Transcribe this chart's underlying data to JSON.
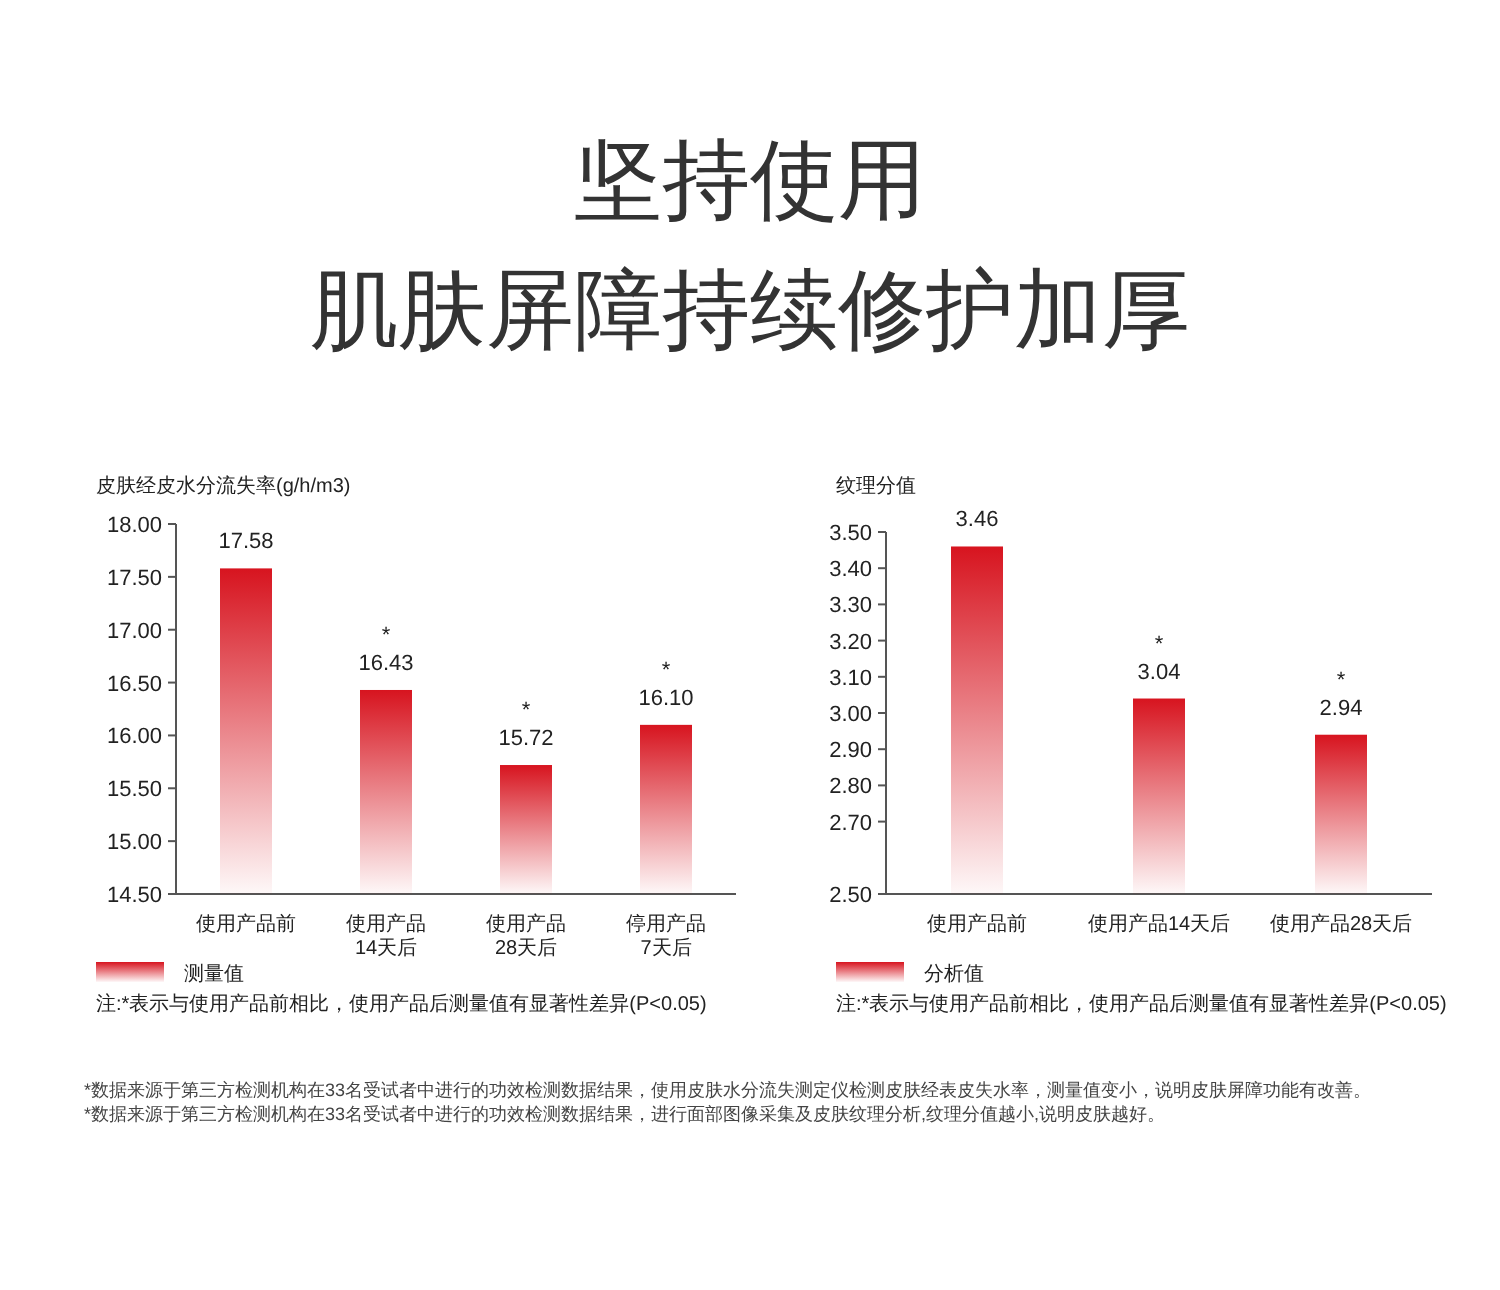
{
  "chart_data": [
    {
      "type": "bar",
      "title": "坚持使用",
      "subtitle": "肌肤屏障持续修护加厚",
      "ylabel": "皮肤经皮水分流失率(g/h/m3)",
      "categories": [
        "使用产品前",
        "使用产品\n14天后",
        "使用产品\n28天后",
        "停用产品\n7天后"
      ],
      "series": [
        {
          "name": "测量值",
          "color": "#d7141f",
          "values": [
            17.58,
            16.43,
            15.72,
            16.1
          ]
        }
      ],
      "value_labels": [
        "17.58",
        "16.43",
        "15.72",
        "16.10"
      ],
      "ylim": [
        14.5,
        18
      ],
      "yticks": [
        {
          "value": 14.5,
          "label": "14.50"
        },
        {
          "value": 15,
          "label": "15.00"
        },
        {
          "value": 15.5,
          "label": "15.50"
        },
        {
          "value": 16,
          "label": "16.00"
        },
        {
          "value": 16.5,
          "label": "16.50"
        },
        {
          "value": 17,
          "label": "17.00"
        },
        {
          "value": 17.5,
          "label": "17.50"
        },
        {
          "value": 18,
          "label": "18.00"
        }
      ],
      "legend": "bottom left",
      "grid": false,
      "annotations": [
        {
          "text": "*",
          "x": "使用产品\n14天后",
          "y": 16.43
        },
        {
          "text": "*",
          "x": "使用产品\n28天后",
          "y": 15.72
        },
        {
          "text": "*",
          "x": "停用产品\n7天后",
          "y": 16.1
        },
        "注:*表示与使用产品前相比，使用产品后测量值有显著性差异(P<0.05)"
      ]
    },
    {
      "type": "bar",
      "ylabel": "纹理分值",
      "categories": [
        "使用产品前",
        "使用产品14天后",
        "使用产品28天后"
      ],
      "series": [
        {
          "name": "分析值",
          "color": "#d7141f",
          "values": [
            3.46,
            3.04,
            2.94
          ]
        }
      ],
      "data_labels": true,
      "ylim": [
        2.5,
        3.5
      ],
      "yticks": [
        {
          "value": 2.5,
          "label": "2.50"
        },
        {
          "value": 2.7,
          "label": "2.70"
        },
        {
          "value": 2.8,
          "label": "2.80"
        },
        {
          "value": 2.9,
          "label": "2.90"
        },
        {
          "value": 3.0,
          "label": "3.00"
        },
        {
          "value": 3.1,
          "label": "3.10"
        },
        {
          "value": 3.2,
          "label": "3.20"
        },
        {
          "value": 3.3,
          "label": "3.30"
        },
        {
          "value": 3.4,
          "label": "3.40"
        },
        {
          "value": 3.5,
          "label": "3.50"
        }
      ],
      "legend": "bottom left",
      "grid": false,
      "annotations": [
        {
          "text": "*",
          "x": "使用产品14天后",
          "y": 3.04
        },
        {
          "text": "*",
          "x": "使用产品28天后",
          "y": 2.94
        },
        "注:*表示与使用产品前相比，使用产品后测量值有显著性差异(P<0.05)",
        "*数据来源于第三方检测机构在33名受试者中进行的功效检测数据结果，使用皮肤水分流失测定仪检测皮肤经表皮失水率，测量值变小，说明皮肤屏障功能有改善。",
        "*数据来源于第三方检测机构在33名受试者中进行的功效检测数据结果，进行面部图像采集及皮肤纹理分析,纹理分值越小,说明皮肤越好。"
      ]
    }
  ]
}
